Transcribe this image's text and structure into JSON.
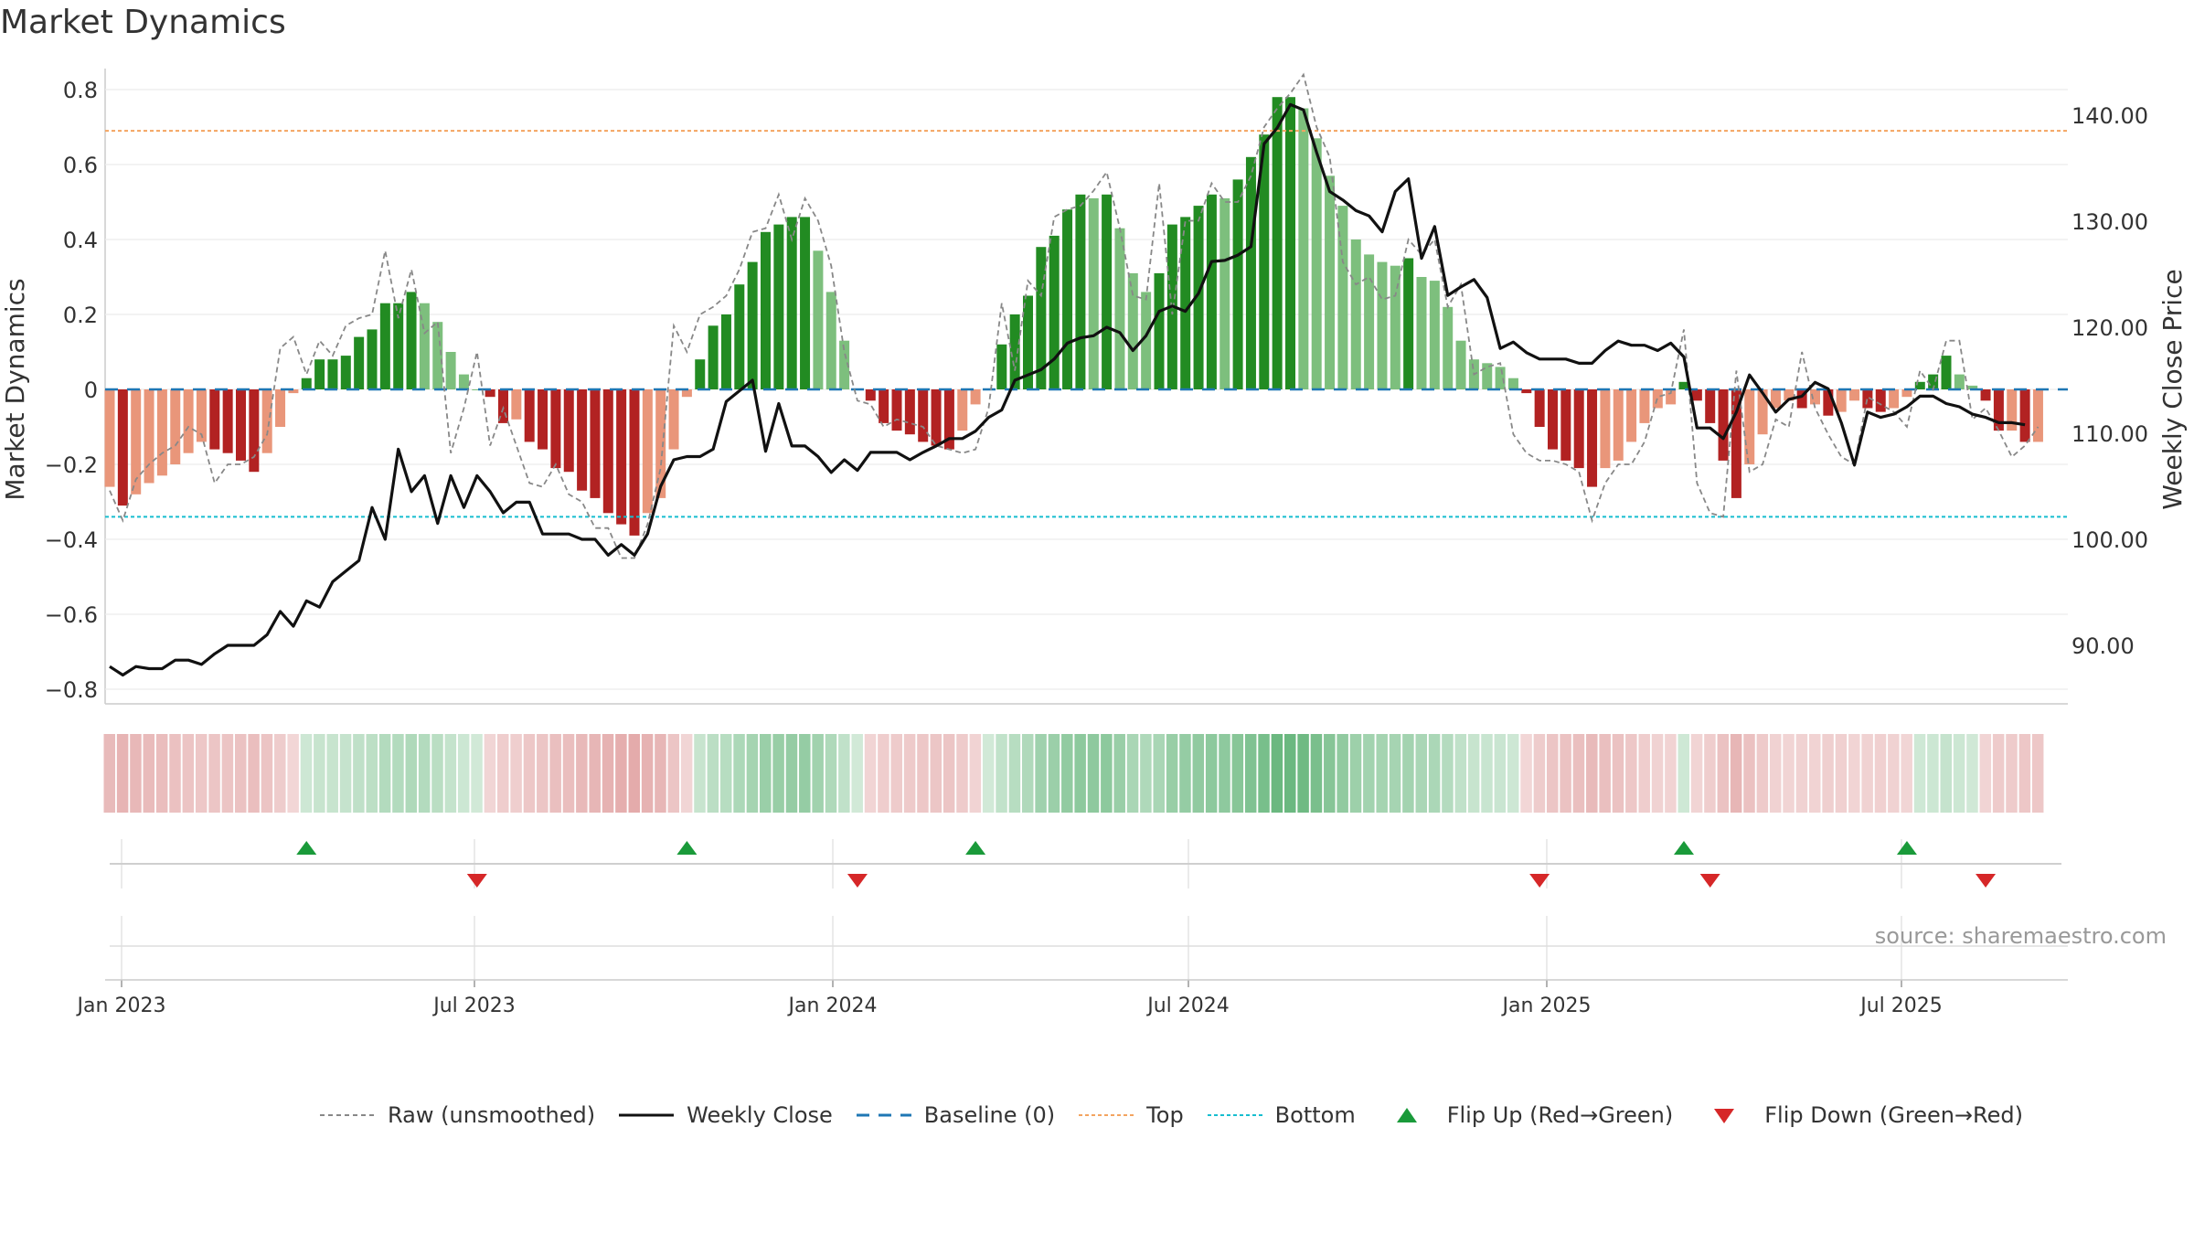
{
  "chart_data": {
    "type": "bar",
    "title": "Market Dynamics",
    "ylabel": "Market Dynamics",
    "y2label": "Weekly Close Price",
    "ylim": [
      -0.8,
      0.8
    ],
    "y2lim": [
      85,
      145
    ],
    "yticks": [
      "0.8",
      "0.6",
      "0.4",
      "0.2",
      "0",
      "−0.2",
      "−0.4",
      "−0.6",
      "−0.8"
    ],
    "y2ticks": [
      "140.00",
      "130.00",
      "120.00",
      "110.00",
      "100.00",
      "90.00"
    ],
    "x_ticks": [
      "Jan 2023",
      "Jul 2023",
      "Jan 2024",
      "Jul 2024",
      "Jan 2025",
      "Jul 2025"
    ],
    "top_line": 0.69,
    "bottom_line": -0.34,
    "n_weeks": 147,
    "bar_values": [
      -0.26,
      -0.31,
      -0.28,
      -0.25,
      -0.23,
      -0.2,
      -0.17,
      -0.14,
      -0.16,
      -0.17,
      -0.19,
      -0.22,
      -0.17,
      -0.1,
      -0.01,
      0.03,
      0.08,
      0.08,
      0.09,
      0.14,
      0.16,
      0.23,
      0.23,
      0.26,
      0.23,
      0.18,
      0.1,
      0.04,
      0.0,
      -0.02,
      -0.09,
      -0.08,
      -0.14,
      -0.16,
      -0.21,
      -0.22,
      -0.27,
      -0.29,
      -0.33,
      -0.36,
      -0.39,
      -0.33,
      -0.29,
      -0.16,
      -0.02,
      0.08,
      0.17,
      0.2,
      0.28,
      0.34,
      0.42,
      0.44,
      0.46,
      0.46,
      0.37,
      0.26,
      0.13,
      0.0,
      -0.03,
      -0.09,
      -0.11,
      -0.12,
      -0.14,
      -0.15,
      -0.16,
      -0.11,
      -0.04,
      0.0,
      0.12,
      0.2,
      0.25,
      0.38,
      0.41,
      0.48,
      0.52,
      0.51,
      0.52,
      0.43,
      0.31,
      0.26,
      0.31,
      0.44,
      0.46,
      0.49,
      0.52,
      0.51,
      0.56,
      0.62,
      0.68,
      0.78,
      0.78,
      0.75,
      0.67,
      0.57,
      0.49,
      0.4,
      0.36,
      0.34,
      0.33,
      0.35,
      0.3,
      0.29,
      0.22,
      0.13,
      0.08,
      0.07,
      0.06,
      0.03,
      -0.01,
      -0.1,
      -0.16,
      -0.19,
      -0.21,
      -0.26,
      -0.21,
      -0.19,
      -0.14,
      -0.09,
      -0.05,
      -0.04,
      0.02,
      -0.03,
      -0.09,
      -0.19,
      -0.29,
      -0.2,
      -0.12,
      -0.05,
      -0.03,
      -0.05,
      -0.04,
      -0.07,
      -0.06,
      -0.03,
      -0.05,
      -0.06,
      -0.05,
      -0.02,
      0.02,
      0.04,
      0.09,
      0.04,
      0.01,
      -0.03,
      -0.11,
      -0.11,
      -0.14,
      -0.14
    ],
    "raw_values": [
      -0.27,
      -0.35,
      -0.24,
      -0.2,
      -0.17,
      -0.15,
      -0.1,
      -0.12,
      -0.25,
      -0.2,
      -0.2,
      -0.18,
      -0.12,
      0.11,
      0.14,
      0.04,
      0.13,
      0.09,
      0.17,
      0.19,
      0.2,
      0.37,
      0.19,
      0.32,
      0.15,
      0.18,
      -0.17,
      -0.05,
      0.1,
      -0.15,
      -0.05,
      -0.15,
      -0.25,
      -0.26,
      -0.2,
      -0.28,
      -0.3,
      -0.37,
      -0.37,
      -0.45,
      -0.45,
      -0.36,
      -0.21,
      0.17,
      0.1,
      0.2,
      0.22,
      0.25,
      0.32,
      0.42,
      0.43,
      0.52,
      0.4,
      0.51,
      0.45,
      0.33,
      0.1,
      -0.03,
      -0.04,
      -0.1,
      -0.08,
      -0.09,
      -0.1,
      -0.15,
      -0.16,
      -0.17,
      -0.16,
      -0.05,
      0.23,
      0.05,
      0.29,
      0.25,
      0.46,
      0.48,
      0.49,
      0.53,
      0.58,
      0.43,
      0.25,
      0.24,
      0.55,
      0.2,
      0.45,
      0.45,
      0.55,
      0.5,
      0.5,
      0.57,
      0.7,
      0.75,
      0.79,
      0.84,
      0.7,
      0.62,
      0.34,
      0.28,
      0.3,
      0.24,
      0.25,
      0.4,
      0.36,
      0.4,
      0.22,
      0.28,
      0.04,
      0.06,
      0.07,
      -0.12,
      -0.17,
      -0.19,
      -0.19,
      -0.2,
      -0.22,
      -0.35,
      -0.25,
      -0.2,
      -0.2,
      -0.14,
      -0.02,
      -0.01,
      0.16,
      -0.25,
      -0.33,
      -0.34,
      0.05,
      -0.22,
      -0.2,
      -0.08,
      -0.1,
      0.1,
      -0.05,
      -0.12,
      -0.18,
      -0.2,
      -0.02,
      -0.04,
      -0.06,
      -0.1,
      0.05,
      0.0,
      0.13,
      0.13,
      -0.08,
      -0.05,
      -0.11,
      -0.18,
      -0.15,
      -0.1
    ],
    "close_series": {
      "name": "Weekly Close",
      "values": [
        88,
        87.2,
        88,
        87.8,
        87.8,
        88.6,
        88.6,
        88.2,
        89.2,
        90,
        90,
        90,
        91,
        93.2,
        91.8,
        94.2,
        93.6,
        96,
        97,
        98,
        103,
        100,
        108.5,
        104.5,
        106,
        101.5,
        106,
        103,
        106,
        104.5,
        102.5,
        103.5,
        103.5,
        100.5,
        100.5,
        100.5,
        100,
        100,
        98.5,
        99.5,
        98.5,
        100.5,
        105,
        107.5,
        107.8,
        107.8,
        108.5,
        113,
        114,
        115,
        108.3,
        112.8,
        108.8,
        108.8,
        107.8,
        106.3,
        107.5,
        106.5,
        108.2,
        108.2,
        108.2,
        107.5,
        108.2,
        108.8,
        109.5,
        109.5,
        110.2,
        111.5,
        112.2,
        115,
        115.5,
        116,
        117,
        118.5,
        119,
        119.2,
        120,
        119.5,
        117.8,
        119.2,
        121.5,
        122,
        121.5,
        123.2,
        126.2,
        126.3,
        126.8,
        127.6,
        137.3,
        138.8,
        141,
        140.5,
        136.5,
        132.8,
        132,
        131,
        130.5,
        129,
        132.8,
        134,
        126.5,
        129.5,
        123,
        123.8,
        124.5,
        122.8,
        118,
        118.6,
        117.6,
        117,
        117,
        117,
        116.6,
        116.6,
        117.8,
        118.7,
        118.3,
        118.3,
        117.8,
        118.5,
        117.2,
        110.5,
        110.5,
        109.5,
        112,
        115.5,
        113.8,
        112,
        113.2,
        113.5,
        114.8,
        114.2,
        111,
        107,
        112,
        111.5,
        111.8,
        112.5,
        113.5,
        113.5,
        112.8,
        112.5,
        111.8,
        111.5,
        111,
        111,
        110.8
      ]
    },
    "heat_strip": "weekly bar colour (red = down regime, green = up regime)",
    "flip_up_weeks": [
      15,
      44,
      66,
      120,
      137
    ],
    "flip_down_weeks": [
      28,
      57,
      109,
      122,
      143
    ],
    "colors": {
      "strong_green": "#228b22",
      "weak_green": "#7dbf7d",
      "strong_red": "#b22222",
      "weak_red": "#e9967a",
      "close_line": "#111111",
      "raw_line": "#888888",
      "baseline": "#1f77b4",
      "top_line": "#f4a460",
      "bottom_line": "#17becf",
      "flip_up": "#1a9a3a",
      "flip_down": "#d62728"
    },
    "legend": [
      {
        "label": "Raw (unsmoothed)",
        "icon": "dashed-gray-line"
      },
      {
        "label": "Weekly Close",
        "icon": "solid-black-line"
      },
      {
        "label": "Baseline (0)",
        "icon": "dashed-blue-line"
      },
      {
        "label": "Top",
        "icon": "dotted-orange-line"
      },
      {
        "label": "Bottom",
        "icon": "dotted-cyan-line"
      },
      {
        "label": "Flip Up (Red→Green)",
        "icon": "triangle-up-green"
      },
      {
        "label": "Flip Down (Green→Red)",
        "icon": "triangle-down-red"
      }
    ],
    "grid": true
  },
  "source": "source: sharemaestro.com"
}
